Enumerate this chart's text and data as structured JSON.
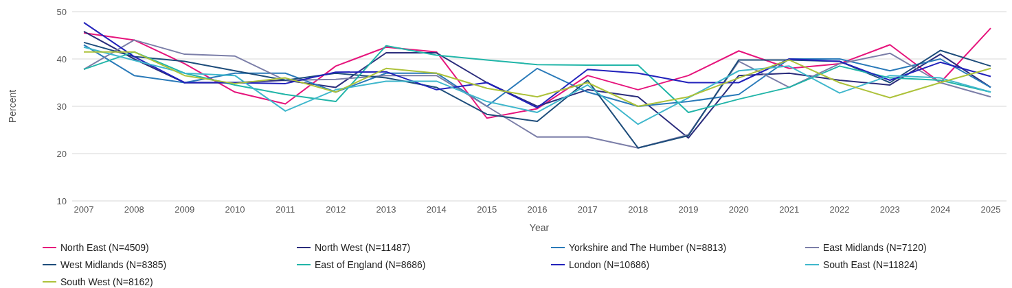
{
  "chart_data": {
    "type": "line",
    "xlabel": "Year",
    "ylabel": "Percent",
    "categories": [
      "2007",
      "2008",
      "2009",
      "2010",
      "2011",
      "2012",
      "2013",
      "2014",
      "2015",
      "2016",
      "2017",
      "2018",
      "2019",
      "2020",
      "2021",
      "2022",
      "2023",
      "2024",
      "2025"
    ],
    "ylim": [
      10,
      50
    ],
    "yticks": [
      10,
      20,
      30,
      40,
      50
    ],
    "grid": "y",
    "legend": "bottom",
    "marker": "none",
    "line_style": "solid",
    "series": [
      {
        "name": "North East (N=4509)",
        "color": "#e6147c",
        "values": [
          45.5,
          44,
          39,
          33,
          30.5,
          38.5,
          42.5,
          41.5,
          27.5,
          29.5,
          36.5,
          33.5,
          36.5,
          41.7,
          38,
          39,
          43,
          35,
          46.5
        ]
      },
      {
        "name": "North West (N=11487)",
        "color": "#2b2d7c",
        "values": [
          45.8,
          40,
          35,
          35,
          35.5,
          34,
          41.3,
          41.3,
          35,
          30,
          33.5,
          32,
          23.3,
          36.5,
          37,
          35.5,
          34.5,
          41,
          34
        ]
      },
      {
        "name": "Yorkshire and The Humber (N=8813)",
        "color": "#2a7ab9",
        "values": [
          43,
          36.5,
          35,
          37,
          37,
          33,
          37,
          37,
          30,
          38,
          33,
          30,
          31,
          32.5,
          40,
          40,
          37.5,
          40,
          34
        ]
      },
      {
        "name": "East Midlands (N=7120)",
        "color": "#7b7ea8",
        "values": [
          37.8,
          44,
          41,
          40.6,
          35.5,
          35.7,
          36.5,
          36.5,
          30,
          23.5,
          23.5,
          21.2,
          24,
          39.5,
          34,
          39,
          41.2,
          35,
          32
        ]
      },
      {
        "name": "West Midlands (N=8385)",
        "color": "#1e4d7b",
        "values": [
          43.5,
          40.5,
          39.5,
          37.5,
          35.5,
          37,
          36,
          34,
          28.3,
          26.8,
          35.5,
          21.2,
          23.8,
          39.8,
          39.8,
          39.5,
          35,
          41.8,
          38.5
        ]
      },
      {
        "name": "East of England (N=8686)",
        "color": "#21b5a8",
        "values": [
          37.8,
          41.5,
          37,
          34.5,
          32.5,
          31,
          42.8,
          40.8,
          39.8,
          38.8,
          38.7,
          38.7,
          28.7,
          31.5,
          34,
          38.5,
          36,
          35.5,
          33
        ]
      },
      {
        "name": "London (N=10686)",
        "color": "#2222bb",
        "values": [
          47.7,
          40.5,
          35,
          35,
          34.8,
          37.2,
          37.3,
          33.5,
          35,
          29.7,
          37.8,
          37,
          35,
          35,
          40,
          39.5,
          35.5,
          39.3,
          36.3
        ]
      },
      {
        "name": "South East (N=11824)",
        "color": "#3fb7cc",
        "values": [
          42.5,
          39.7,
          37,
          36.5,
          29,
          33.5,
          35.3,
          35.3,
          31,
          28.7,
          34.5,
          26.2,
          31.8,
          37.5,
          38.5,
          32.8,
          36.5,
          36,
          33
        ]
      },
      {
        "name": "South West (N=8162)",
        "color": "#adc23a",
        "values": [
          41.5,
          41.5,
          36.5,
          34.8,
          36,
          33,
          38,
          37,
          33.8,
          32,
          35,
          30,
          32,
          36,
          39.8,
          35,
          31.8,
          35,
          38
        ]
      }
    ]
  }
}
